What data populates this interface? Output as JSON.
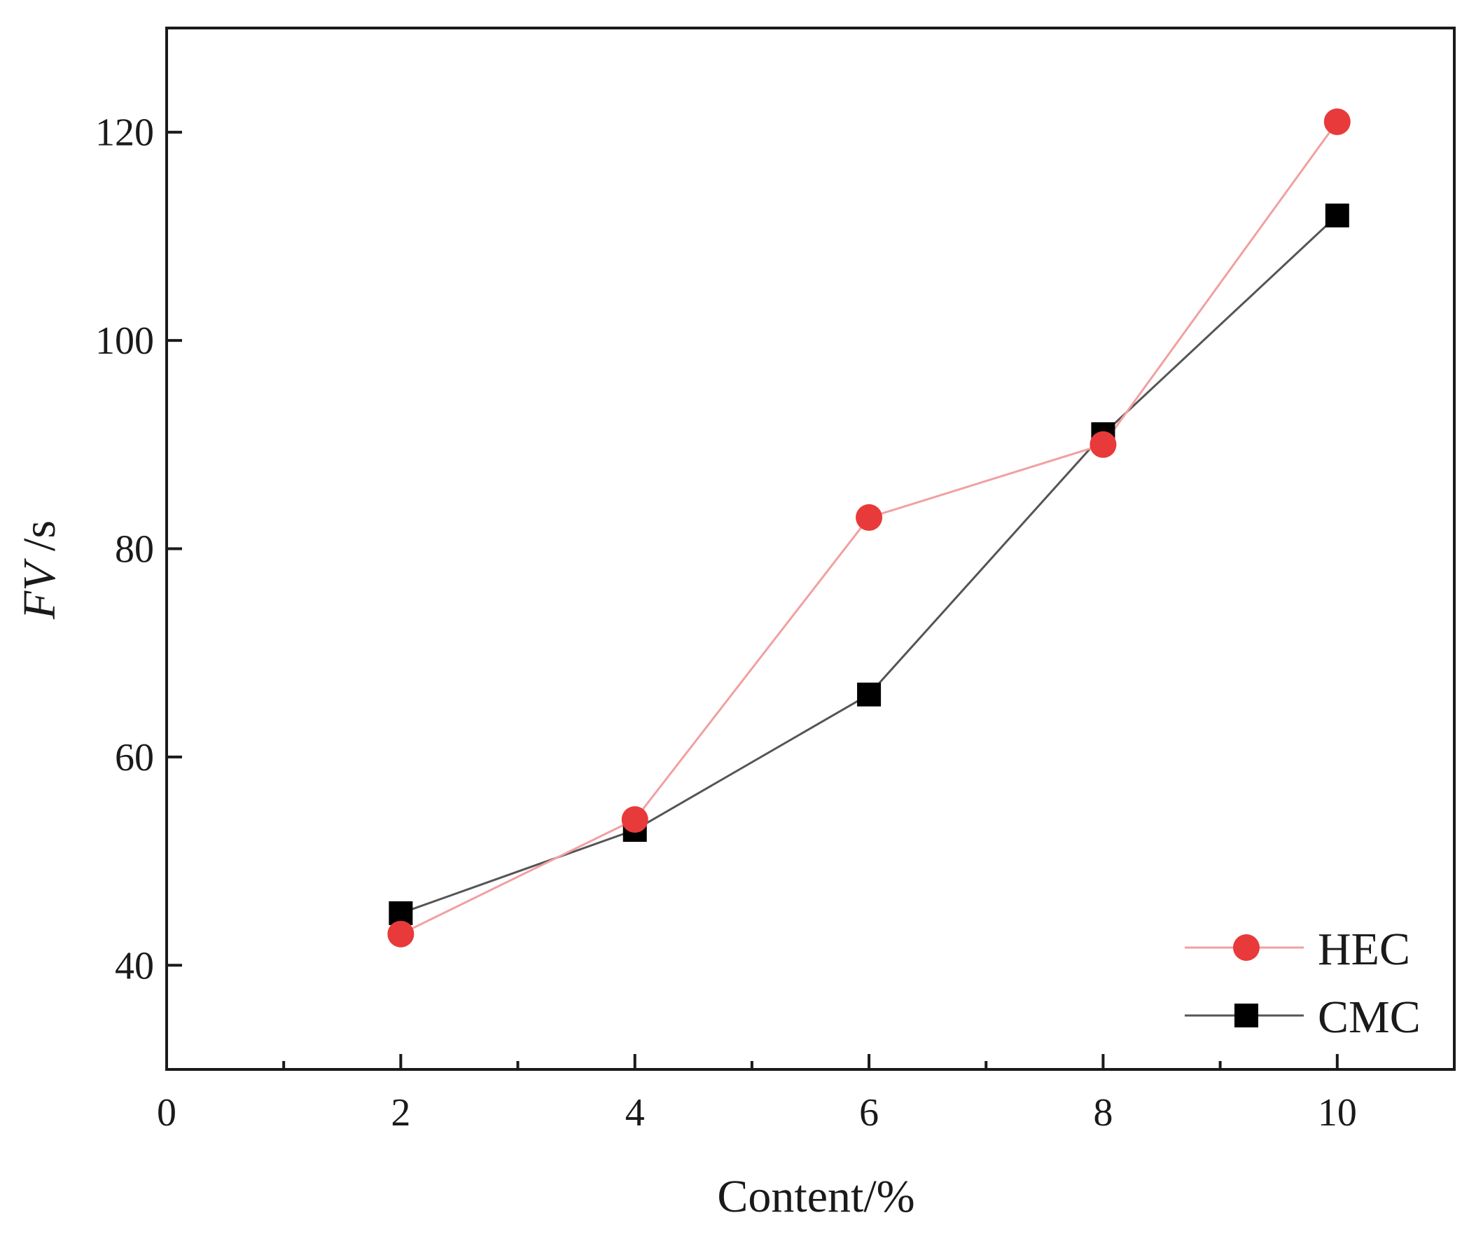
{
  "chart_data": {
    "type": "line",
    "xlabel": "Content/%",
    "ylabel_italic": "FV",
    "ylabel_unit": " /s",
    "xlim": [
      0,
      11
    ],
    "ylim": [
      30,
      130
    ],
    "x_ticks": [
      0,
      2,
      4,
      6,
      8,
      10
    ],
    "x_minor_ticks": [
      1,
      3,
      5,
      7,
      9
    ],
    "y_ticks": [
      40,
      60,
      80,
      100,
      120
    ],
    "legend_position": "bottom-right",
    "series": [
      {
        "name": "HEC",
        "marker": "circle",
        "color": "#e83a3a",
        "line_color": "#f2a0a0",
        "x": [
          2,
          4,
          6,
          8,
          10
        ],
        "y": [
          43,
          54,
          83,
          90,
          121
        ]
      },
      {
        "name": "CMC",
        "marker": "square",
        "color": "#000000",
        "line_color": "#555555",
        "x": [
          2,
          4,
          6,
          8,
          10
        ],
        "y": [
          45,
          53,
          66,
          91,
          112
        ]
      }
    ]
  }
}
